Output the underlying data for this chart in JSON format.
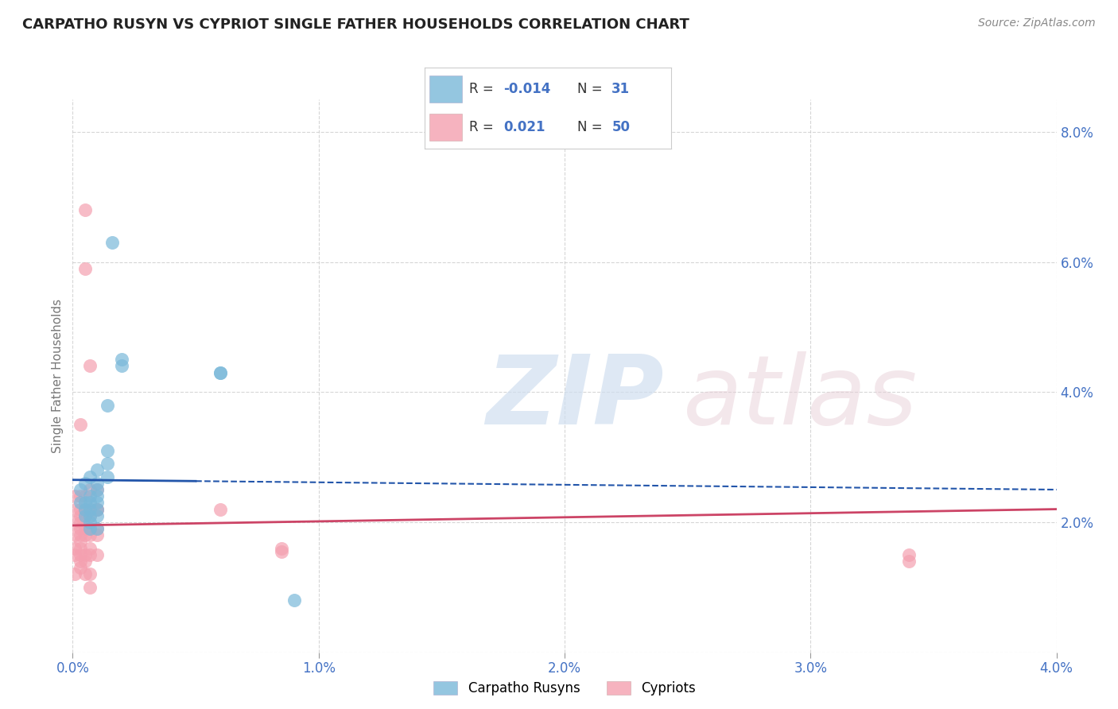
{
  "title": "CARPATHO RUSYN VS CYPRIOT SINGLE FATHER HOUSEHOLDS CORRELATION CHART",
  "source": "Source: ZipAtlas.com",
  "ylabel": "Single Father Households",
  "xlim": [
    0.0,
    0.04
  ],
  "ylim": [
    0.0,
    0.085
  ],
  "xticks": [
    0.0,
    0.01,
    0.02,
    0.03,
    0.04
  ],
  "xtick_labels": [
    "0.0%",
    "1.0%",
    "2.0%",
    "3.0%",
    "4.0%"
  ],
  "yticks": [
    0.0,
    0.02,
    0.04,
    0.06,
    0.08
  ],
  "ytick_labels": [
    "",
    "2.0%",
    "4.0%",
    "6.0%",
    "8.0%"
  ],
  "blue_R": "-0.014",
  "blue_N": "31",
  "pink_R": "0.021",
  "pink_N": "50",
  "blue_color": "#7ab8d9",
  "pink_color": "#f4a0b0",
  "blue_line_color": "#2255aa",
  "pink_line_color": "#cc4466",
  "watermark_zip": "ZIP",
  "watermark_atlas": "atlas",
  "blue_points": [
    [
      0.0003,
      0.025
    ],
    [
      0.0003,
      0.023
    ],
    [
      0.0005,
      0.026
    ],
    [
      0.0005,
      0.023
    ],
    [
      0.0005,
      0.022
    ],
    [
      0.0005,
      0.021
    ],
    [
      0.0007,
      0.027
    ],
    [
      0.0007,
      0.024
    ],
    [
      0.0007,
      0.023
    ],
    [
      0.0007,
      0.022
    ],
    [
      0.0007,
      0.021
    ],
    [
      0.0007,
      0.02
    ],
    [
      0.0007,
      0.019
    ],
    [
      0.001,
      0.028
    ],
    [
      0.001,
      0.026
    ],
    [
      0.001,
      0.025
    ],
    [
      0.001,
      0.024
    ],
    [
      0.001,
      0.023
    ],
    [
      0.001,
      0.022
    ],
    [
      0.001,
      0.021
    ],
    [
      0.001,
      0.019
    ],
    [
      0.0014,
      0.038
    ],
    [
      0.0014,
      0.031
    ],
    [
      0.0014,
      0.029
    ],
    [
      0.0014,
      0.027
    ],
    [
      0.0016,
      0.063
    ],
    [
      0.002,
      0.045
    ],
    [
      0.002,
      0.044
    ],
    [
      0.006,
      0.043
    ],
    [
      0.006,
      0.043
    ],
    [
      0.009,
      0.008
    ]
  ],
  "pink_points": [
    [
      0.0001,
      0.024
    ],
    [
      0.0001,
      0.022
    ],
    [
      0.0001,
      0.02
    ],
    [
      0.0001,
      0.018
    ],
    [
      0.0001,
      0.016
    ],
    [
      0.0001,
      0.015
    ],
    [
      0.0001,
      0.012
    ],
    [
      0.0003,
      0.035
    ],
    [
      0.0003,
      0.024
    ],
    [
      0.0003,
      0.022
    ],
    [
      0.0003,
      0.021
    ],
    [
      0.0003,
      0.02
    ],
    [
      0.0003,
      0.019
    ],
    [
      0.0003,
      0.018
    ],
    [
      0.0003,
      0.017
    ],
    [
      0.0003,
      0.016
    ],
    [
      0.0003,
      0.015
    ],
    [
      0.0003,
      0.014
    ],
    [
      0.0003,
      0.013
    ],
    [
      0.0005,
      0.068
    ],
    [
      0.0005,
      0.059
    ],
    [
      0.0005,
      0.024
    ],
    [
      0.0005,
      0.022
    ],
    [
      0.0005,
      0.021
    ],
    [
      0.0005,
      0.019
    ],
    [
      0.0005,
      0.018
    ],
    [
      0.0005,
      0.015
    ],
    [
      0.0005,
      0.014
    ],
    [
      0.0005,
      0.012
    ],
    [
      0.0007,
      0.044
    ],
    [
      0.0007,
      0.025
    ],
    [
      0.0007,
      0.022
    ],
    [
      0.0007,
      0.021
    ],
    [
      0.0007,
      0.019
    ],
    [
      0.0007,
      0.018
    ],
    [
      0.0007,
      0.016
    ],
    [
      0.0007,
      0.015
    ],
    [
      0.0007,
      0.012
    ],
    [
      0.0007,
      0.01
    ],
    [
      0.001,
      0.025
    ],
    [
      0.001,
      0.022
    ],
    [
      0.001,
      0.019
    ],
    [
      0.001,
      0.018
    ],
    [
      0.001,
      0.015
    ],
    [
      0.001,
      0.022
    ],
    [
      0.006,
      0.022
    ],
    [
      0.0085,
      0.016
    ],
    [
      0.0085,
      0.0155
    ],
    [
      0.034,
      0.015
    ],
    [
      0.034,
      0.014
    ]
  ],
  "blue_line_x_solid_end": 0.005,
  "blue_line_start_y": 0.0265,
  "blue_line_end_y": 0.025,
  "pink_line_start_y": 0.0195,
  "pink_line_end_y": 0.022
}
